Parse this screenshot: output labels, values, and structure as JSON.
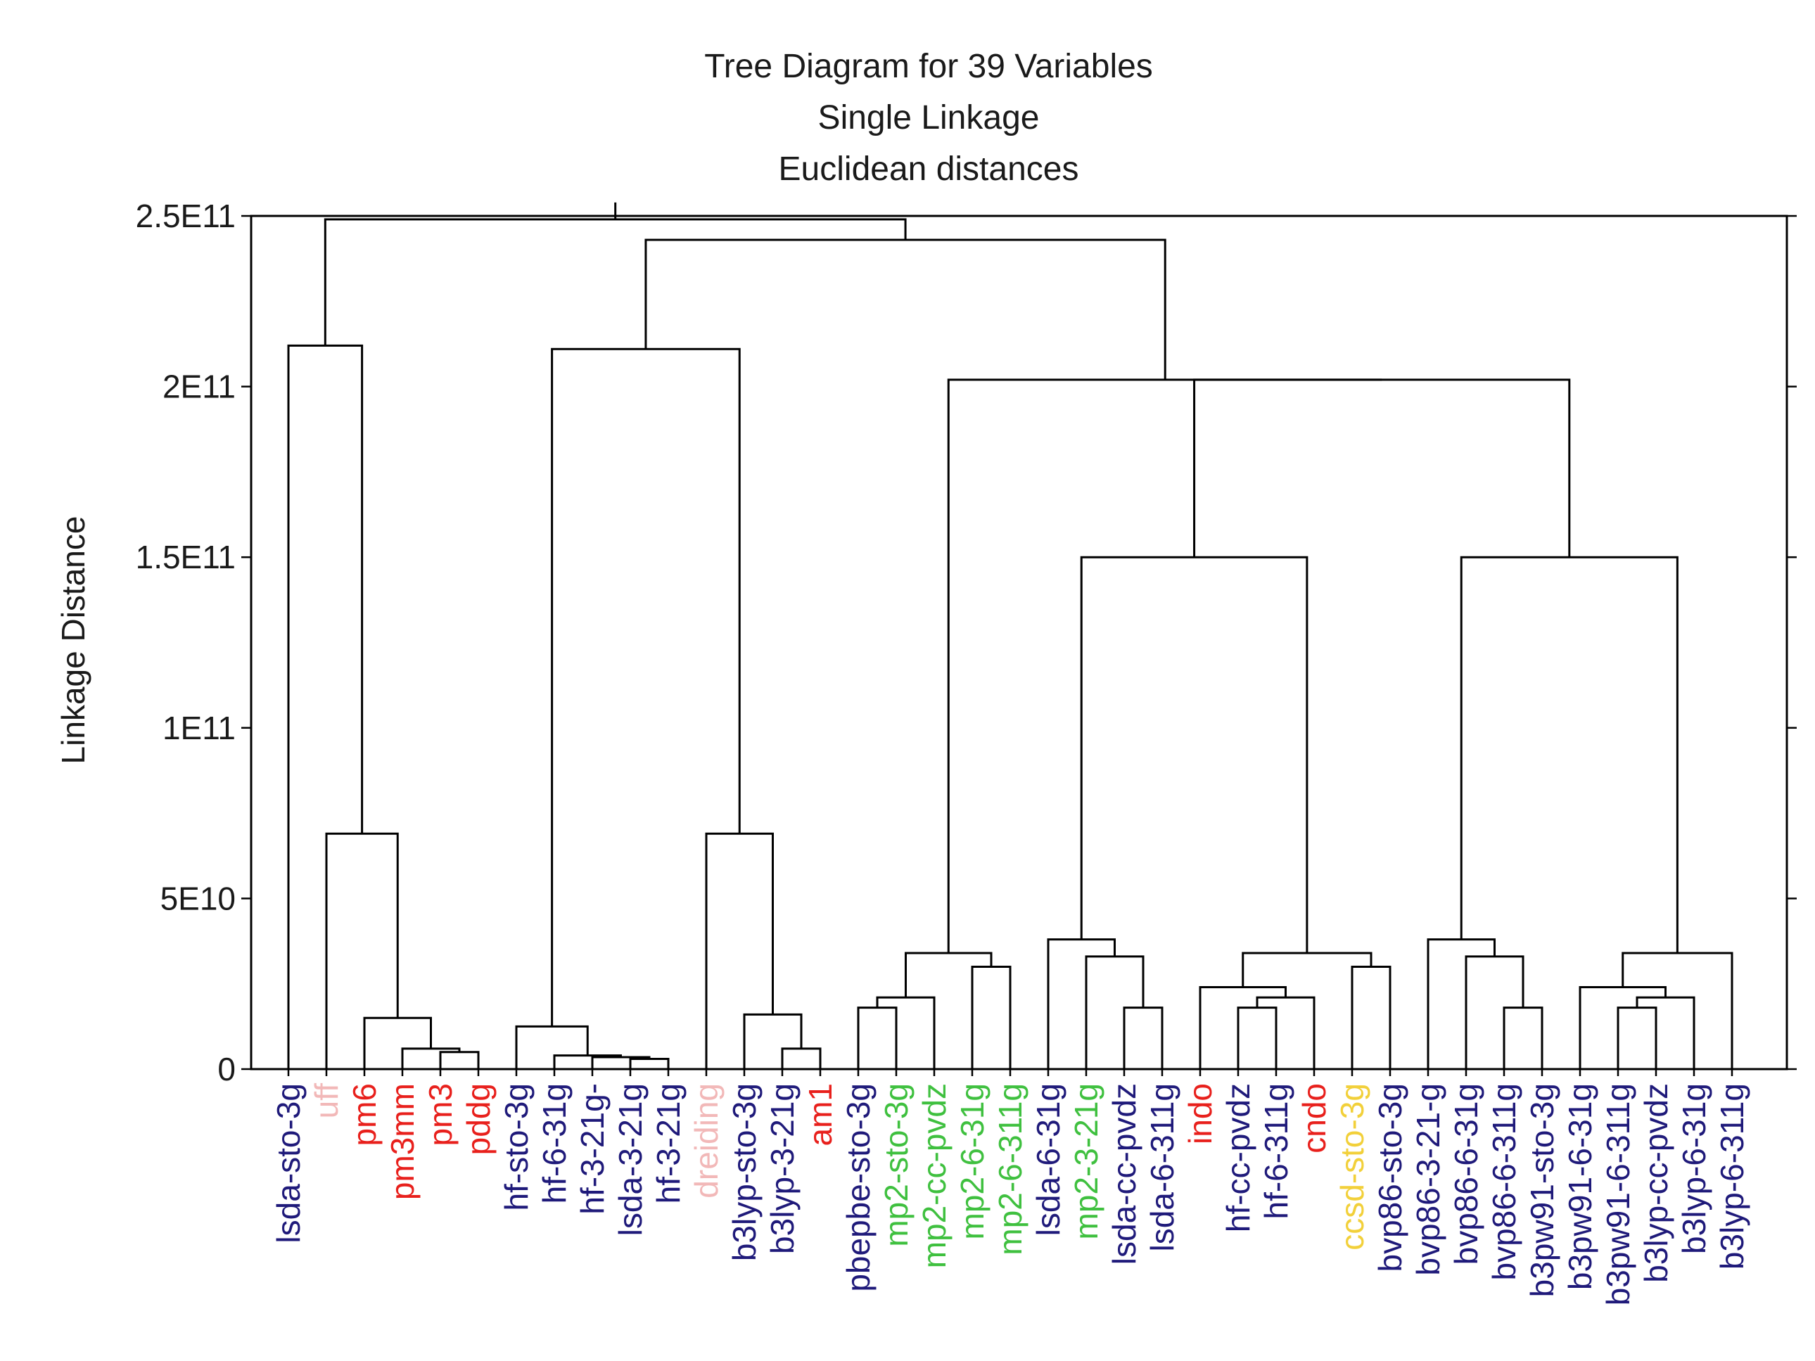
{
  "chart_data": {
    "type": "dendrogram",
    "title": [
      "Tree Diagram for 39 Variables",
      "Single Linkage",
      "Euclidean distances"
    ],
    "ylabel": "Linkage Distance",
    "ylim": [
      0,
      250000000000.0
    ],
    "yticks": [
      {
        "value": 0,
        "label": "0"
      },
      {
        "value": 50000000000.0,
        "label": "5E10"
      },
      {
        "value": 100000000000.0,
        "label": "1E11"
      },
      {
        "value": 150000000000.0,
        "label": "1.5E11"
      },
      {
        "value": 200000000000.0,
        "label": "2E11"
      },
      {
        "value": 250000000000.0,
        "label": "2.5E11"
      }
    ],
    "colors": {
      "navy": "#1f1a7a",
      "red": "#e8201c",
      "pink": "#f2b8b8",
      "green": "#3fc03f",
      "yellow": "#f2d03a"
    },
    "leaves": [
      {
        "label": "lsda-sto-3g",
        "color": "navy"
      },
      {
        "label": "uff",
        "color": "pink"
      },
      {
        "label": "pm6",
        "color": "red"
      },
      {
        "label": "pm3mm",
        "color": "red"
      },
      {
        "label": "pm3",
        "color": "red"
      },
      {
        "label": "pddg",
        "color": "red"
      },
      {
        "label": "hf-sto-3g",
        "color": "navy"
      },
      {
        "label": "hf-6-31g",
        "color": "navy"
      },
      {
        "label": "hf-3-21g-",
        "color": "navy"
      },
      {
        "label": "lsda-3-21g",
        "color": "navy"
      },
      {
        "label": "hf-3-21g",
        "color": "navy"
      },
      {
        "label": "dreiding",
        "color": "pink"
      },
      {
        "label": "b3lyp-sto-3g",
        "color": "navy"
      },
      {
        "label": "b3lyp-3-21g",
        "color": "navy"
      },
      {
        "label": "am1",
        "color": "red"
      },
      {
        "label": "pbepbe-sto-3g",
        "color": "navy"
      },
      {
        "label": "mp2-sto-3g",
        "color": "green"
      },
      {
        "label": "mp2-cc-pvdz",
        "color": "green"
      },
      {
        "label": "mp2-6-31g",
        "color": "green"
      },
      {
        "label": "mp2-6-311g",
        "color": "green"
      },
      {
        "label": "lsda-6-31g",
        "color": "navy"
      },
      {
        "label": "mp2-3-21g",
        "color": "green"
      },
      {
        "label": "lsda-cc-pvdz",
        "color": "navy"
      },
      {
        "label": "lsda-6-311g",
        "color": "navy"
      },
      {
        "label": "indo",
        "color": "red"
      },
      {
        "label": "hf-cc-pvdz",
        "color": "navy"
      },
      {
        "label": "hf-6-311g",
        "color": "navy"
      },
      {
        "label": "cndo",
        "color": "red"
      },
      {
        "label": "ccsd-sto-3g",
        "color": "yellow"
      },
      {
        "label": "bvp86-sto-3g",
        "color": "navy"
      },
      {
        "label": "bvp86-3-21-g",
        "color": "navy"
      },
      {
        "label": "bvp86-6-31g",
        "color": "navy"
      },
      {
        "label": "bvp86-6-311g",
        "color": "navy"
      },
      {
        "label": "b3pw91-sto-3g",
        "color": "navy"
      },
      {
        "label": "b3pw91-6-31g",
        "color": "navy"
      },
      {
        "label": "b3pw91-6-311g",
        "color": "navy"
      },
      {
        "label": "b3lyp-cc-pvdz",
        "color": "navy"
      },
      {
        "label": "b3lyp-6-31g",
        "color": "navy"
      },
      {
        "label": "b3lyp-6-311g",
        "color": "navy"
      }
    ],
    "merges": [
      {
        "id": "p1",
        "left": "pm3",
        "right": "pddg",
        "height": 5000000000.0
      },
      {
        "id": "p2",
        "left": "pm3mm",
        "right": "p1",
        "height": 6000000000.0
      },
      {
        "id": "p3",
        "left": "p2",
        "right": "pm6",
        "height": 15000000000.0
      },
      {
        "id": "p4",
        "left": "p3",
        "right": "uff",
        "height": 69000000000.0
      },
      {
        "id": "p5",
        "left": "lsda-sto-3g",
        "right": "p4",
        "height": 212000000000.0
      },
      {
        "id": "h1",
        "left": "lsda-3-21g",
        "right": "hf-3-21g",
        "height": 3000000000.0
      },
      {
        "id": "h2",
        "left": "hf-3-21g-",
        "right": "h1",
        "height": 3500000000.0
      },
      {
        "id": "h3",
        "left": "hf-6-31g",
        "right": "h2",
        "height": 4000000000.0
      },
      {
        "id": "h4",
        "left": "hf-sto-3g",
        "right": "h3",
        "height": 12500000000.0
      },
      {
        "id": "b1",
        "left": "b3lyp-3-21g",
        "right": "am1",
        "height": 6000000000.0
      },
      {
        "id": "b2",
        "left": "b3lyp-sto-3g",
        "right": "b1",
        "height": 16000000000.0
      },
      {
        "id": "b3",
        "left": "dreiding",
        "right": "b2",
        "height": 69000000000.0
      },
      {
        "id": "hb",
        "left": "h4",
        "right": "b3",
        "height": 211000000000.0
      },
      {
        "id": "m1",
        "left": "pbepbe-sto-3g",
        "right": "mp2-sto-3g",
        "height": 18000000000.0
      },
      {
        "id": "m2",
        "left": "m1",
        "right": "mp2-cc-pvdz",
        "height": 21000000000.0
      },
      {
        "id": "m3",
        "left": "mp2-6-31g",
        "right": "mp2-6-311g",
        "height": 30000000000.0
      },
      {
        "id": "m4",
        "left": "m2",
        "right": "m3",
        "height": 34000000000.0
      },
      {
        "id": "l1",
        "left": "lsda-cc-pvdz",
        "right": "lsda-6-311g",
        "height": 18000000000.0
      },
      {
        "id": "l2",
        "left": "mp2-3-21g",
        "right": "l1",
        "height": 33000000000.0
      },
      {
        "id": "l3",
        "left": "lsda-6-31g",
        "right": "l2",
        "height": 38000000000.0
      },
      {
        "id": "c1",
        "left": "hf-cc-pvdz",
        "right": "hf-6-311g",
        "height": 18000000000.0
      },
      {
        "id": "c2",
        "left": "c1",
        "right": "cndo",
        "height": 21000000000.0
      },
      {
        "id": "c3",
        "left": "indo",
        "right": "c2",
        "height": 24000000000.0
      },
      {
        "id": "c4",
        "left": "ccsd-sto-3g",
        "right": "bvp86-sto-3g",
        "height": 30000000000.0
      },
      {
        "id": "c5",
        "left": "c3",
        "right": "c4",
        "height": 34000000000.0
      },
      {
        "id": "lc",
        "left": "l3",
        "right": "c5",
        "height": 150000000000.0
      },
      {
        "id": "v1",
        "left": "bvp86-6-311g",
        "right": "b3pw91-sto-3g",
        "height": 18000000000.0
      },
      {
        "id": "v2",
        "left": "bvp86-6-31g",
        "right": "v1",
        "height": 33000000000.0
      },
      {
        "id": "v3",
        "left": "bvp86-3-21-g",
        "right": "v2",
        "height": 38000000000.0
      },
      {
        "id": "w1",
        "left": "b3pw91-6-311g",
        "right": "b3lyp-cc-pvdz",
        "height": 18000000000.0
      },
      {
        "id": "w2",
        "left": "w1",
        "right": "b3lyp-6-31g",
        "height": 21000000000.0
      },
      {
        "id": "w3",
        "left": "b3pw91-6-31g",
        "right": "w2",
        "height": 24000000000.0
      },
      {
        "id": "w4",
        "left": "w3",
        "right": "b3lyp-6-311g",
        "height": 34000000000.0
      },
      {
        "id": "vw",
        "left": "v3",
        "right": "w4",
        "height": 150000000000.0
      },
      {
        "id": "lv",
        "left": "lc",
        "right": "vw",
        "height": 202000000000.0
      },
      {
        "id": "ml",
        "left": "m4",
        "right": "lv",
        "height": 202000000000.0
      },
      {
        "id": "hm",
        "left": "hb",
        "right": "ml",
        "height": 243000000000.0
      },
      {
        "id": "root",
        "left": "p5",
        "right": "hm",
        "height": 249000000000.0
      }
    ]
  }
}
